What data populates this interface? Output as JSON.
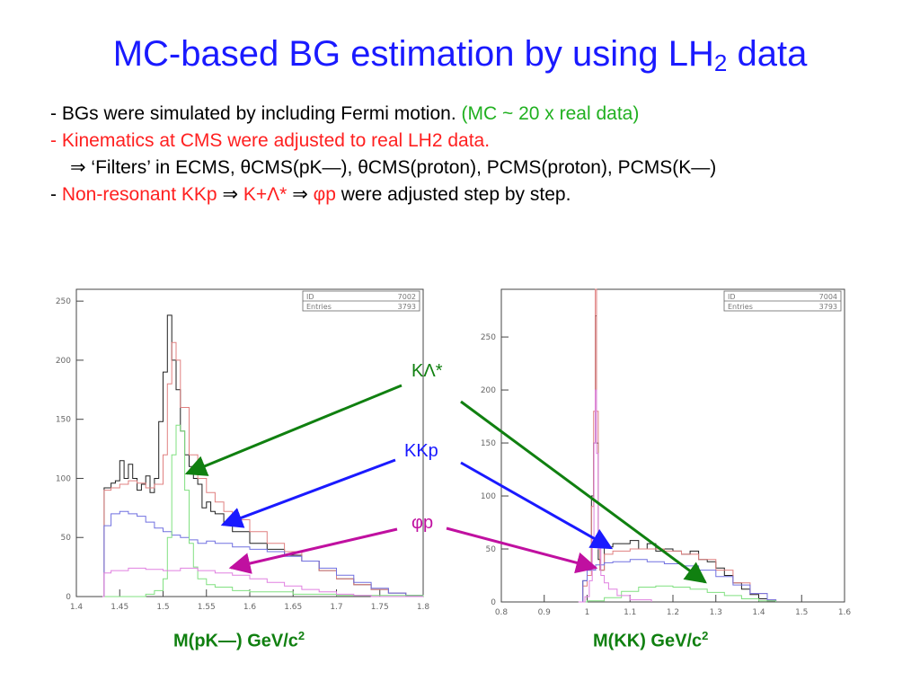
{
  "title": {
    "main": "MC-based BG estimation by using LH",
    "sub": "2",
    "tail": " data"
  },
  "bullets": {
    "b1_text": "- BGs were simulated by including Fermi motion. ",
    "b1_note": "(MC ~ 20 x real data)",
    "b2": "- Kinematics at CMS were adjusted to real LH2 data.",
    "b3": "⇒ ‘Filters’ in ECMS, θCMS(pK—), θCMS(proton), PCMS(proton),  PCMS(K—)",
    "b4_dash": "- ",
    "b4_red1": "Non-resonant KKp",
    "b4_arrow1": " ⇒ ",
    "b4_red2": "K+Λ*",
    "b4_arrow2": " ⇒ ",
    "b4_red3": "φp",
    "b4_tail": " were adjusted step by step."
  },
  "labels": {
    "klambda": "KΛ*",
    "kkp": "KKp",
    "phip": "φp"
  },
  "colors": {
    "title": "#1a1aff",
    "red": "#ff2020",
    "green_text": "#20b020",
    "klambda_arrow": "#108010",
    "kkp_arrow": "#1a1aff",
    "phip_arrow": "#c010a0"
  },
  "chart_data": [
    {
      "type": "line",
      "xlabel_main": "M(pK—) GeV/c",
      "xlabel_sup": "2",
      "stats": [
        {
          "key": "ID",
          "value": "7002"
        },
        {
          "key": "Entries",
          "value": "3793"
        }
      ],
      "xlim": [
        1.4,
        1.8
      ],
      "ylim": [
        0,
        260
      ],
      "xticks": [
        "1.4",
        "1.45",
        "1.5",
        "1.55",
        "1.6",
        "1.65",
        "1.7",
        "1.75",
        "1.8"
      ],
      "yticks": [
        0,
        50,
        100,
        150,
        200,
        250
      ],
      "series": [
        {
          "color": "#202020",
          "x": [
            1.43,
            1.432,
            1.44,
            1.445,
            1.45,
            1.455,
            1.46,
            1.465,
            1.47,
            1.475,
            1.48,
            1.485,
            1.49,
            1.495,
            1.5,
            1.505,
            1.51,
            1.515,
            1.52,
            1.525,
            1.53,
            1.535,
            1.54,
            1.545,
            1.55,
            1.555,
            1.56,
            1.57,
            1.58,
            1.6,
            1.62,
            1.64,
            1.66,
            1.68,
            1.7,
            1.72,
            1.74,
            1.76,
            1.78,
            1.8
          ],
          "y": [
            0,
            92,
            96,
            98,
            115,
            100,
            112,
            100,
            90,
            95,
            102,
            88,
            100,
            148,
            190,
            238,
            200,
            175,
            140,
            120,
            110,
            100,
            95,
            75,
            80,
            72,
            70,
            62,
            55,
            45,
            40,
            35,
            30,
            22,
            15,
            10,
            6,
            3,
            1,
            0
          ]
        },
        {
          "color": "#e08080",
          "x": [
            1.43,
            1.432,
            1.44,
            1.45,
            1.46,
            1.47,
            1.48,
            1.49,
            1.5,
            1.505,
            1.51,
            1.515,
            1.52,
            1.53,
            1.54,
            1.55,
            1.56,
            1.57,
            1.58,
            1.6,
            1.62,
            1.64,
            1.66,
            1.68,
            1.7,
            1.72,
            1.74,
            1.76,
            1.78,
            1.8
          ],
          "y": [
            0,
            90,
            92,
            95,
            98,
            96,
            92,
            95,
            120,
            180,
            215,
            200,
            160,
            120,
            100,
            88,
            80,
            72,
            65,
            55,
            45,
            38,
            30,
            22,
            15,
            10,
            6,
            3,
            1,
            0
          ]
        },
        {
          "color": "#7070e0",
          "x": [
            1.43,
            1.432,
            1.44,
            1.45,
            1.46,
            1.47,
            1.48,
            1.49,
            1.5,
            1.51,
            1.52,
            1.53,
            1.54,
            1.55,
            1.56,
            1.58,
            1.6,
            1.62,
            1.64,
            1.66,
            1.68,
            1.7,
            1.72,
            1.74,
            1.76,
            1.78,
            1.8
          ],
          "y": [
            0,
            60,
            70,
            72,
            70,
            68,
            63,
            58,
            55,
            52,
            50,
            48,
            45,
            47,
            45,
            42,
            40,
            38,
            34,
            30,
            24,
            18,
            12,
            7,
            3,
            1,
            0
          ]
        },
        {
          "color": "#80e080",
          "x": [
            1.43,
            1.48,
            1.49,
            1.5,
            1.505,
            1.51,
            1.515,
            1.52,
            1.525,
            1.53,
            1.535,
            1.54,
            1.55,
            1.56,
            1.58,
            1.6,
            1.65,
            1.7,
            1.8
          ],
          "y": [
            0,
            2,
            5,
            15,
            50,
            120,
            145,
            140,
            90,
            45,
            25,
            15,
            10,
            8,
            5,
            4,
            2,
            1,
            0
          ]
        },
        {
          "color": "#e080e0",
          "x": [
            1.43,
            1.432,
            1.44,
            1.46,
            1.48,
            1.5,
            1.52,
            1.54,
            1.56,
            1.58,
            1.6,
            1.62,
            1.64,
            1.66,
            1.68,
            1.7,
            1.72,
            1.74,
            1.76,
            1.78,
            1.8
          ],
          "y": [
            0,
            20,
            22,
            24,
            23,
            22,
            24,
            22,
            20,
            18,
            15,
            12,
            9,
            6,
            4,
            2,
            1,
            0,
            0,
            0,
            0
          ]
        }
      ]
    },
    {
      "type": "line",
      "xlabel_main": "M(KK) GeV/c",
      "xlabel_sup": "2",
      "stats": [
        {
          "key": "ID",
          "value": "7004"
        },
        {
          "key": "Entries",
          "value": "3793"
        }
      ],
      "xlim": [
        0.8,
        1.6
      ],
      "ylim": [
        0,
        295
      ],
      "xticks": [
        "0.8",
        "0.9",
        "1",
        "1.1",
        "1.2",
        "1.3",
        "1.4",
        "1.5",
        "1.6"
      ],
      "yticks": [
        0,
        50,
        100,
        150,
        200,
        250
      ],
      "series": [
        {
          "color": "#202020",
          "x": [
            0.98,
            0.99,
            1.0,
            1.01,
            1.015,
            1.019,
            1.022,
            1.026,
            1.03,
            1.04,
            1.06,
            1.08,
            1.1,
            1.12,
            1.14,
            1.16,
            1.18,
            1.2,
            1.22,
            1.24,
            1.26,
            1.28,
            1.3,
            1.32,
            1.34,
            1.36,
            1.38,
            1.4,
            1.42,
            1.44
          ],
          "y": [
            0,
            20,
            30,
            100,
            150,
            270,
            150,
            40,
            30,
            52,
            55,
            55,
            58,
            50,
            55,
            48,
            50,
            48,
            45,
            48,
            40,
            38,
            32,
            25,
            18,
            12,
            7,
            3,
            1,
            0
          ]
        },
        {
          "color": "#e08080",
          "x": [
            0.98,
            0.99,
            1.0,
            1.01,
            1.015,
            1.019,
            1.022,
            1.026,
            1.03,
            1.04,
            1.06,
            1.1,
            1.14,
            1.18,
            1.22,
            1.26,
            1.3,
            1.34,
            1.38,
            1.42,
            1.44
          ],
          "y": [
            0,
            15,
            25,
            90,
            180,
            295,
            180,
            50,
            30,
            45,
            48,
            50,
            50,
            48,
            45,
            40,
            30,
            18,
            8,
            2,
            0
          ]
        },
        {
          "color": "#7070e0",
          "x": [
            0.98,
            0.99,
            1.0,
            1.02,
            1.04,
            1.06,
            1.1,
            1.14,
            1.18,
            1.22,
            1.26,
            1.3,
            1.34,
            1.38,
            1.42,
            1.44
          ],
          "y": [
            0,
            20,
            30,
            35,
            37,
            38,
            40,
            38,
            36,
            34,
            30,
            24,
            16,
            8,
            2,
            0
          ]
        },
        {
          "color": "#80e080",
          "x": [
            0.98,
            1.0,
            1.04,
            1.08,
            1.12,
            1.16,
            1.2,
            1.24,
            1.28,
            1.32,
            1.36,
            1.4,
            1.44
          ],
          "y": [
            0,
            1,
            4,
            10,
            14,
            15,
            14,
            12,
            9,
            6,
            3,
            1,
            0
          ]
        },
        {
          "color": "#e080e0",
          "x": [
            0.98,
            0.995,
            1.005,
            1.012,
            1.016,
            1.019,
            1.022,
            1.026,
            1.032,
            1.04,
            1.05,
            1.07,
            1.1,
            1.15
          ],
          "y": [
            0,
            5,
            20,
            60,
            150,
            200,
            140,
            50,
            25,
            18,
            12,
            6,
            2,
            0
          ]
        }
      ]
    }
  ]
}
